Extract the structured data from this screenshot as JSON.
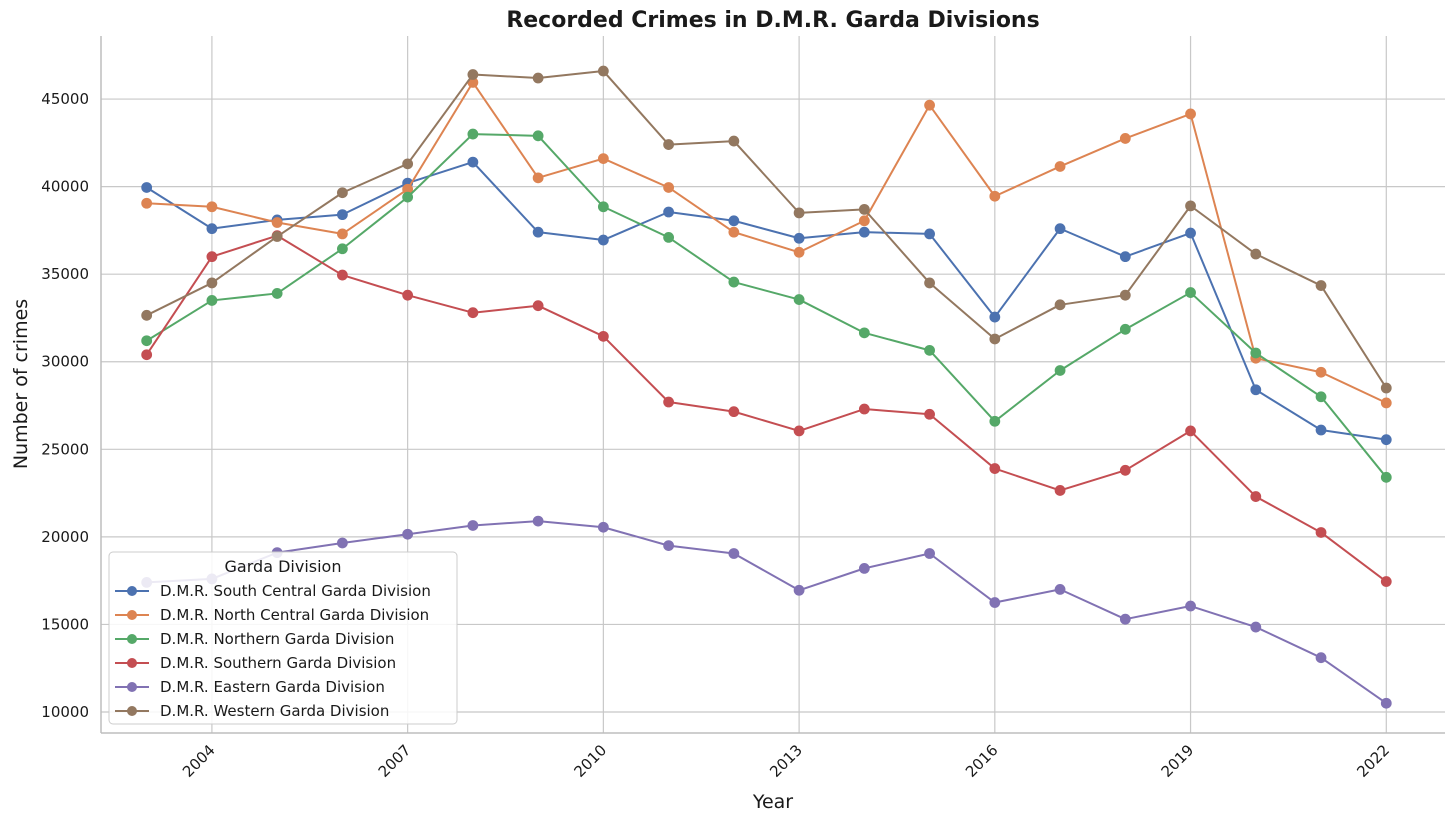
{
  "chart_data": {
    "type": "line",
    "title": "Recorded Crimes in D.M.R. Garda Divisions",
    "xlabel": "Year",
    "ylabel": "Number of crimes",
    "x": [
      2003,
      2004,
      2005,
      2006,
      2007,
      2008,
      2009,
      2010,
      2011,
      2012,
      2013,
      2014,
      2015,
      2016,
      2017,
      2018,
      2019,
      2020,
      2021,
      2022
    ],
    "x_ticks": [
      2004,
      2007,
      2010,
      2013,
      2016,
      2019,
      2022
    ],
    "y_ticks": [
      10000,
      15000,
      20000,
      25000,
      30000,
      35000,
      40000,
      45000
    ],
    "xlim": [
      2002.3,
      2022.9
    ],
    "ylim": [
      8800,
      48600
    ],
    "grid": true,
    "legend": {
      "title": "Garda Division",
      "placement": "lower-left"
    },
    "series": [
      {
        "name": "D.M.R. South Central Garda Division",
        "color": "#4c72b0",
        "values": [
          39950,
          37600,
          38100,
          38400,
          40200,
          41400,
          37400,
          36950,
          38550,
          38050,
          37050,
          37400,
          37300,
          32550,
          37600,
          36000,
          37350,
          28400,
          26100,
          25550
        ]
      },
      {
        "name": "D.M.R. North Central Garda Division",
        "color": "#dd8452",
        "values": [
          39050,
          38850,
          37950,
          37300,
          39850,
          45950,
          40500,
          41600,
          39950,
          37400,
          36250,
          38050,
          44650,
          39450,
          41150,
          42750,
          44150,
          30200,
          29400,
          27650
        ]
      },
      {
        "name": "D.M.R. Northern Garda Division",
        "color": "#55a868",
        "values": [
          31200,
          33500,
          33900,
          36450,
          39400,
          43000,
          42900,
          38850,
          37100,
          34550,
          33550,
          31650,
          30650,
          26600,
          29500,
          31850,
          33950,
          30500,
          28000,
          23400
        ]
      },
      {
        "name": "D.M.R. Southern Garda Division",
        "color": "#c44e52",
        "values": [
          30400,
          36000,
          37200,
          34950,
          33800,
          32800,
          33200,
          31450,
          27700,
          27150,
          26050,
          27300,
          27000,
          23900,
          22650,
          23800,
          26050,
          22300,
          20250,
          17450
        ]
      },
      {
        "name": "D.M.R. Eastern Garda Division",
        "color": "#8172b3",
        "values": [
          17400,
          17600,
          19100,
          19650,
          20150,
          20650,
          20900,
          20550,
          19500,
          19050,
          16950,
          18200,
          19050,
          16250,
          17000,
          15300,
          16050,
          14850,
          13100,
          10500
        ]
      },
      {
        "name": "D.M.R. Western Garda Division",
        "color": "#937860",
        "values": [
          32650,
          34500,
          37150,
          39650,
          41300,
          46400,
          46200,
          46600,
          42400,
          42600,
          38500,
          38700,
          34500,
          31300,
          33250,
          33800,
          38900,
          36150,
          34350,
          28500
        ]
      }
    ]
  }
}
